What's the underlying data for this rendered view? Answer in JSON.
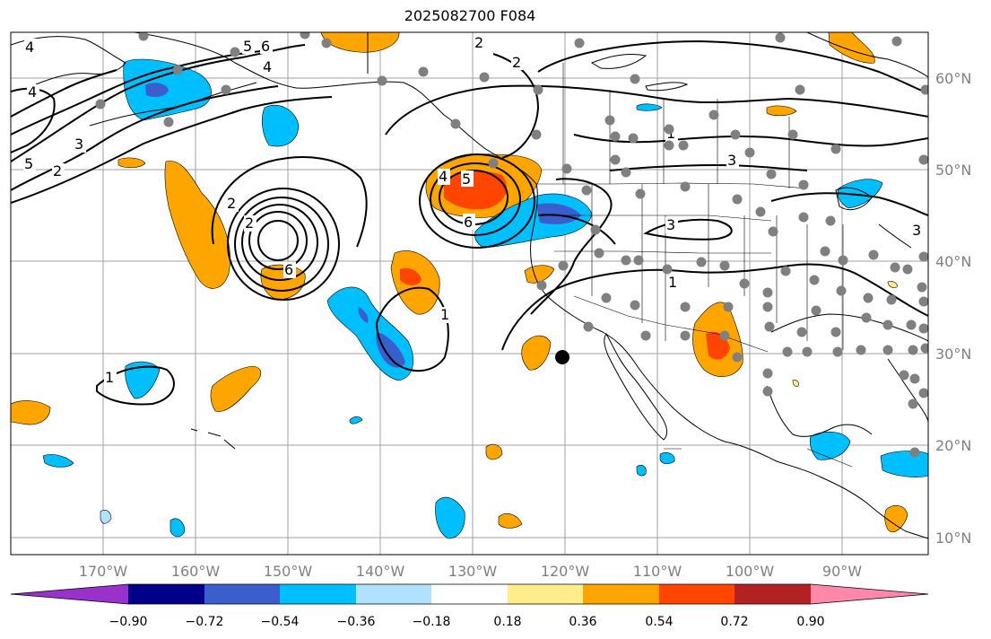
{
  "title": "2025082700 F084",
  "map": {
    "lon_labels": [
      "170°W",
      "160°W",
      "150°W",
      "140°W",
      "130°W",
      "120°W",
      "110°W",
      "100°W",
      "90°W"
    ],
    "lat_labels": [
      "60°N",
      "50°N",
      "40°N",
      "30°N",
      "20°N",
      "10°N"
    ],
    "grid_color": "#a0a0a0"
  },
  "contour_labels": [
    "4",
    "5",
    "6",
    "4",
    "4",
    "3",
    "5",
    "2",
    "2",
    "2",
    "6",
    "4",
    "5",
    "6",
    "2",
    "2",
    "1",
    "3",
    "3",
    "1",
    "1",
    "1",
    "3"
  ],
  "colorbar": {
    "ticks": [
      "−0.90",
      "−0.72",
      "−0.54",
      "−0.36",
      "−0.18",
      "0.18",
      "0.36",
      "0.54",
      "0.72",
      "0.90"
    ],
    "colors": [
      "#9932cc",
      "#00008b",
      "#3a5fcd",
      "#00bfff",
      "#b0e2ff",
      "#ffffff",
      "#ffec8b",
      "#ffa500",
      "#ff4500",
      "#b22222",
      "#ff88aa"
    ]
  }
}
